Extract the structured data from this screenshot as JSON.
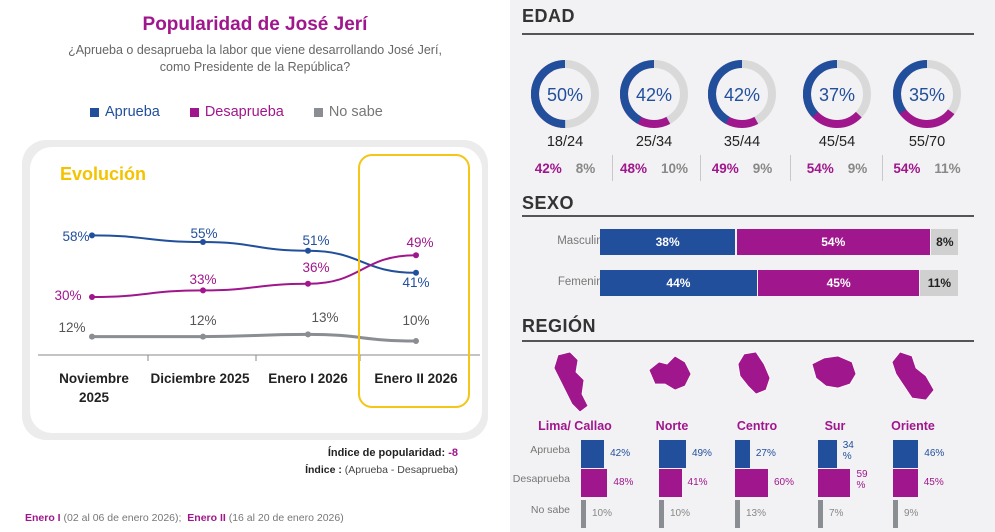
{
  "title": "Popularidad de José Jerí",
  "subtitle": [
    "¿Aprueba o desaprueba la labor que viene desarrollando José Jerí,",
    "como Presidente de la República?"
  ],
  "legend": [
    {
      "name": "Aprueba",
      "color": "#214f9c"
    },
    {
      "name": "Desaprueba",
      "color": "#a0168c"
    },
    {
      "name": "No sabe",
      "color": "#8a8d91"
    }
  ],
  "evolution_label": "Evolución",
  "chart_data": [
    {
      "type": "line",
      "categories": [
        "Noviembre 2025",
        "Diciembre 2025",
        "Enero I 2026",
        "Enero II 2026"
      ],
      "series": [
        {
          "name": "Aprueba",
          "values": [
            58,
            55,
            51,
            41
          ],
          "labels": [
            "58%",
            "55%",
            "51%",
            "41%"
          ]
        },
        {
          "name": "Desaprueba",
          "values": [
            30,
            33,
            36,
            49
          ],
          "labels": [
            "30%",
            "33%",
            "36%",
            "49%"
          ]
        },
        {
          "name": "No sabe",
          "values": [
            12,
            12,
            13,
            10
          ],
          "labels": [
            "12%",
            "12%",
            "13%",
            "10%"
          ]
        }
      ],
      "highlighted_category": "Enero II 2026"
    },
    {
      "type": "pie",
      "title": "EDAD",
      "categories": [
        "18/24",
        "25/34",
        "35/44",
        "45/54",
        "55/70"
      ],
      "series": [
        {
          "name": "Aprueba",
          "values": [
            50,
            42,
            42,
            37,
            35
          ]
        },
        {
          "name": "Desaprueba",
          "values": [
            42,
            48,
            49,
            54,
            54
          ]
        },
        {
          "name": "No sabe",
          "values": [
            8,
            10,
            9,
            9,
            11
          ]
        }
      ]
    },
    {
      "type": "bar",
      "title": "SEXO",
      "categories": [
        "Masculino",
        "Femenino"
      ],
      "series": [
        {
          "name": "Aprueba",
          "values": [
            38,
            44
          ]
        },
        {
          "name": "Desaprueba",
          "values": [
            54,
            45
          ]
        },
        {
          "name": "No sabe",
          "values": [
            8,
            11
          ]
        }
      ]
    },
    {
      "type": "bar",
      "title": "REGIÓN",
      "categories": [
        "Lima/ Callao",
        "Norte",
        "Centro",
        "Sur",
        "Oriente"
      ],
      "series": [
        {
          "name": "Aprueba",
          "values": [
            42,
            49,
            27,
            34,
            46
          ]
        },
        {
          "name": "Desaprueba",
          "values": [
            48,
            41,
            60,
            59,
            45
          ]
        },
        {
          "name": "No sabe",
          "values": [
            10,
            10,
            13,
            7,
            9
          ]
        }
      ]
    }
  ],
  "x_axis_labels": [
    [
      "Noviembre",
      "2025"
    ],
    [
      "Diciembre 2025"
    ],
    [
      "Enero I 2026"
    ],
    [
      "Enero II 2026"
    ]
  ],
  "edad": {
    "title": "EDAD",
    "groups": [
      {
        "range": "18/24",
        "aprueba": "50%",
        "desaprueba": "42%",
        "nosabe": "8%"
      },
      {
        "range": "25/34",
        "aprueba": "42%",
        "desaprueba": "48%",
        "nosabe": "10%"
      },
      {
        "range": "35/44",
        "aprueba": "42%",
        "desaprueba": "49%",
        "nosabe": "9%"
      },
      {
        "range": "45/54",
        "aprueba": "37%",
        "desaprueba": "54%",
        "nosabe": "9%"
      },
      {
        "range": "55/70",
        "aprueba": "35%",
        "desaprueba": "54%",
        "nosabe": "11%"
      }
    ]
  },
  "sexo": {
    "title": "SEXO",
    "rows": [
      {
        "label": "Masculino",
        "aprueba": "38%",
        "desaprueba": "54%",
        "nosabe": "8%"
      },
      {
        "label": "Femenino",
        "aprueba": "44%",
        "desaprueba": "45%",
        "nosabe": "11%"
      }
    ]
  },
  "region": {
    "title": "REGIÓN",
    "row_labels": [
      "Aprueba",
      "Desaprueba",
      "No sabe"
    ],
    "regions": [
      {
        "name": "Lima/ Callao",
        "aprueba": "42%",
        "desaprueba": "48%",
        "nosabe": "10%"
      },
      {
        "name": "Norte",
        "aprueba": "49%",
        "desaprueba": "41%",
        "nosabe": "10%"
      },
      {
        "name": "Centro",
        "aprueba": "27%",
        "desaprueba": "60%",
        "nosabe": "13%"
      },
      {
        "name": "Sur",
        "aprueba": "34 %",
        "desaprueba": "59 %",
        "nosabe": "7%"
      },
      {
        "name": "Oriente",
        "aprueba": "46%",
        "desaprueba": "45%",
        "nosabe": "9%"
      }
    ]
  },
  "indice": {
    "label": "Índice de popularidad:",
    "value": "-8",
    "formula_label": "Índice :",
    "formula": "(Aprueba - Desaprueba)"
  },
  "footnote": {
    "e1": "Enero I",
    "e1_dates": "(02 al 06 de enero 2026);",
    "e2": "Enero II",
    "e2_dates": "(16 al 20 de enero 2026)"
  },
  "colors": {
    "aprueba": "#214f9c",
    "desaprueba": "#a0168c",
    "nosabe": "#8a8d91",
    "highlight": "#f5c518",
    "ring_bg": "#d9d9d9"
  },
  "region_map_icons": [
    "lima-callao-map-icon",
    "norte-map-icon",
    "centro-map-icon",
    "sur-map-icon",
    "oriente-map-icon"
  ]
}
